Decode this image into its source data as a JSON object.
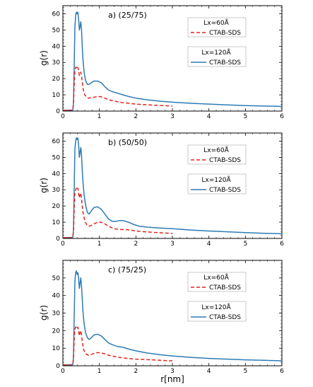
{
  "colors": {
    "series_60": "#e3241b",
    "series_120": "#2d7bb6"
  },
  "chart_data": [
    {
      "type": "line",
      "title": "a) (25/75)",
      "xlabel": "",
      "ylabel": "g(r)",
      "xlim": [
        0,
        6
      ],
      "ylim": [
        0,
        65
      ],
      "xticks": [
        "0",
        "1",
        "2",
        "3",
        "4",
        "5",
        "6"
      ],
      "yticks": [
        "0",
        "10",
        "20",
        "30",
        "40",
        "50",
        "60"
      ],
      "legend": [
        {
          "header": "Lx=60Å",
          "label": "CTAB-SDS"
        },
        {
          "header": "Lx=120Å",
          "label": "CTAB-SDS"
        }
      ],
      "series": [
        {
          "name": "CTAB-SDS",
          "group": "Lx=120Å",
          "style": "solid",
          "x": [
            0,
            0.27,
            0.29,
            0.31,
            0.33,
            0.35,
            0.37,
            0.39,
            0.41,
            0.43,
            0.45,
            0.47,
            0.49,
            0.51,
            0.53,
            0.55,
            0.58,
            0.62,
            0.67,
            0.72,
            0.78,
            0.85,
            0.95,
            1.05,
            1.15,
            1.25,
            1.35,
            1.5,
            1.65,
            1.8,
            2.0,
            2.3,
            2.7,
            3.0,
            3.5,
            4.0,
            4.5,
            5.0,
            5.5,
            6.0
          ],
          "y": [
            0.5,
            0.6,
            5,
            28,
            52,
            59,
            61,
            60,
            61,
            57,
            50,
            52,
            55,
            51,
            40,
            32,
            24,
            19,
            16.5,
            16.5,
            17.5,
            18.5,
            18.5,
            17.5,
            15,
            13,
            12,
            11,
            10,
            9,
            8,
            7,
            6,
            5.5,
            4.8,
            4.3,
            3.8,
            3.4,
            3.1,
            2.9
          ]
        },
        {
          "name": "CTAB-SDS",
          "group": "Lx=60Å",
          "style": "dashed",
          "x": [
            0,
            0.27,
            0.29,
            0.31,
            0.33,
            0.35,
            0.37,
            0.39,
            0.41,
            0.43,
            0.45,
            0.47,
            0.49,
            0.51,
            0.53,
            0.56,
            0.6,
            0.65,
            0.7,
            0.78,
            0.85,
            0.95,
            1.05,
            1.15,
            1.25,
            1.4,
            1.6,
            1.8,
            2.0,
            2.2,
            2.5,
            2.8,
            3.0
          ],
          "y": [
            0.5,
            0.6,
            4,
            16,
            25,
            27,
            27,
            26,
            27,
            25,
            22,
            23,
            24,
            22,
            18,
            13,
            10,
            8.5,
            8,
            8.2,
            8.5,
            9,
            8.8,
            8,
            7,
            6.2,
            5.3,
            4.8,
            4.3,
            4,
            3.6,
            3.3,
            3.1
          ]
        }
      ]
    },
    {
      "type": "line",
      "title": "b) (50/50)",
      "xlabel": "",
      "ylabel": "g(r)",
      "xlim": [
        0,
        6
      ],
      "ylim": [
        0,
        65
      ],
      "xticks": [
        "0",
        "1",
        "2",
        "3",
        "4",
        "5",
        "6"
      ],
      "yticks": [
        "0",
        "10",
        "20",
        "30",
        "40",
        "50",
        "60"
      ],
      "legend": [
        {
          "header": "Lx=60Å",
          "label": "CTAB-SDS"
        },
        {
          "header": "Lx=120Å",
          "label": "CTAB-SDS"
        }
      ],
      "series": [
        {
          "name": "CTAB-SDS",
          "group": "Lx=120Å",
          "style": "solid",
          "x": [
            0,
            0.27,
            0.29,
            0.31,
            0.33,
            0.35,
            0.37,
            0.39,
            0.41,
            0.43,
            0.45,
            0.47,
            0.49,
            0.51,
            0.53,
            0.55,
            0.58,
            0.62,
            0.67,
            0.72,
            0.78,
            0.85,
            0.95,
            1.05,
            1.15,
            1.25,
            1.35,
            1.45,
            1.55,
            1.65,
            1.8,
            1.95,
            2.1,
            2.3,
            2.6,
            3.0,
            3.5,
            4.0,
            4.5,
            5.0,
            5.5,
            6.0
          ],
          "y": [
            0.5,
            0.6,
            5,
            30,
            55,
            60,
            62,
            61,
            62,
            58,
            50,
            53,
            56,
            52,
            42,
            35,
            27,
            21,
            16,
            15,
            17,
            19,
            19.5,
            18,
            15,
            12,
            10.5,
            10.5,
            11,
            11,
            10,
            8.5,
            7.5,
            7,
            6.5,
            6,
            5.2,
            4.6,
            4.1,
            3.6,
            3.2,
            2.9
          ]
        },
        {
          "name": "CTAB-SDS",
          "group": "Lx=60Å",
          "style": "dashed",
          "x": [
            0,
            0.27,
            0.29,
            0.31,
            0.33,
            0.35,
            0.37,
            0.39,
            0.41,
            0.43,
            0.45,
            0.47,
            0.49,
            0.51,
            0.53,
            0.56,
            0.6,
            0.65,
            0.7,
            0.78,
            0.85,
            0.95,
            1.05,
            1.15,
            1.25,
            1.4,
            1.55,
            1.7,
            1.85,
            2.0,
            2.2,
            2.5,
            2.8,
            3.0
          ],
          "y": [
            0.5,
            0.6,
            4,
            18,
            28,
            30,
            31,
            30,
            31,
            28,
            25,
            27,
            28,
            25,
            20,
            15,
            11,
            8.5,
            7.5,
            8,
            9,
            10,
            10,
            9,
            7.5,
            6,
            5.5,
            5.5,
            5.2,
            4.6,
            4.2,
            3.7,
            3.3,
            3.1
          ]
        }
      ]
    },
    {
      "type": "line",
      "title": "c) (75/25)",
      "xlabel": "r[nm]",
      "ylabel": "g(r)",
      "xlim": [
        0,
        6
      ],
      "ylim": [
        0,
        60
      ],
      "xticks": [
        "0",
        "1",
        "2",
        "3",
        "4",
        "5",
        "6"
      ],
      "yticks": [
        "0",
        "10",
        "20",
        "30",
        "40",
        "50"
      ],
      "legend": [
        {
          "header": "Lx=60Å",
          "label": "CTAB-SDS"
        },
        {
          "header": "Lx=120Å",
          "label": "CTAB-SDS"
        }
      ],
      "series": [
        {
          "name": "CTAB-SDS",
          "group": "Lx=120Å",
          "style": "solid",
          "x": [
            0,
            0.27,
            0.29,
            0.31,
            0.33,
            0.35,
            0.37,
            0.39,
            0.41,
            0.43,
            0.45,
            0.47,
            0.49,
            0.51,
            0.53,
            0.55,
            0.58,
            0.62,
            0.67,
            0.72,
            0.78,
            0.85,
            0.95,
            1.05,
            1.15,
            1.25,
            1.35,
            1.5,
            1.65,
            1.8,
            2.0,
            2.3,
            2.7,
            3.0,
            3.5,
            4.0,
            4.5,
            5.0,
            5.5,
            6.0
          ],
          "y": [
            0.5,
            0.6,
            5,
            28,
            48,
            53,
            54,
            52,
            53,
            50,
            44,
            47,
            50,
            46,
            38,
            31,
            24,
            19,
            16,
            15,
            16,
            17.5,
            18,
            17,
            15,
            13,
            12,
            11,
            10.5,
            9.5,
            8.5,
            7.3,
            6.2,
            5.6,
            4.8,
            4.2,
            3.8,
            3.4,
            3.1,
            2.8
          ]
        },
        {
          "name": "CTAB-SDS",
          "group": "Lx=60Å",
          "style": "dashed",
          "x": [
            0,
            0.27,
            0.29,
            0.31,
            0.33,
            0.35,
            0.37,
            0.39,
            0.41,
            0.43,
            0.45,
            0.47,
            0.49,
            0.51,
            0.53,
            0.56,
            0.6,
            0.65,
            0.7,
            0.78,
            0.85,
            0.95,
            1.05,
            1.15,
            1.25,
            1.4,
            1.6,
            1.8,
            2.0,
            2.2,
            2.5,
            2.8,
            3.0
          ],
          "y": [
            0.5,
            0.6,
            4,
            15,
            21,
            22,
            22,
            21,
            22,
            20,
            17,
            19,
            20,
            18,
            14,
            10,
            7.5,
            6.5,
            6,
            6.5,
            7,
            7.5,
            7.3,
            6.8,
            6,
            5.3,
            4.6,
            4.1,
            3.8,
            3.6,
            3.3,
            3.0,
            2.8
          ]
        }
      ]
    }
  ]
}
